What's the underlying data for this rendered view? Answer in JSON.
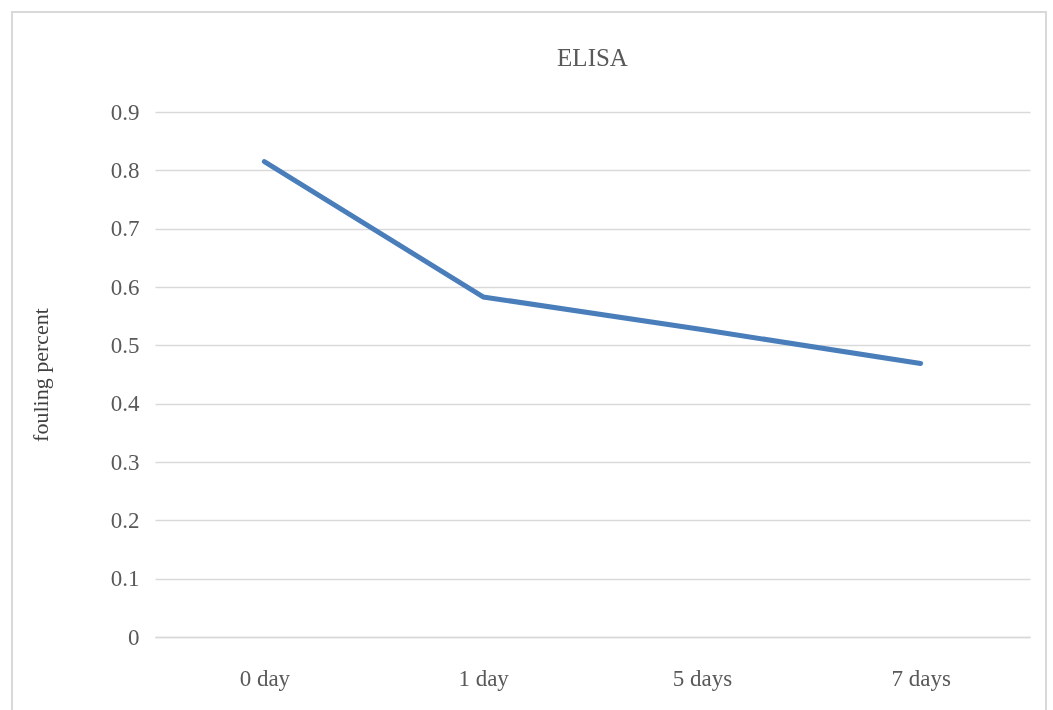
{
  "chart_data": {
    "type": "line",
    "title": "ELISA",
    "ylabel": "fouling percent",
    "categories": [
      "0 day",
      "1 day",
      "5 days",
      "7 days"
    ],
    "series": [
      {
        "color": "#4a7ebb",
        "values": [
          0.815,
          0.583,
          0.527,
          0.469
        ]
      }
    ],
    "ylim": [
      0,
      0.9
    ],
    "yticks": [
      0,
      0.1,
      0.2,
      0.3,
      0.4,
      0.5,
      0.6,
      0.7,
      0.8,
      0.9
    ],
    "grid": "y"
  }
}
